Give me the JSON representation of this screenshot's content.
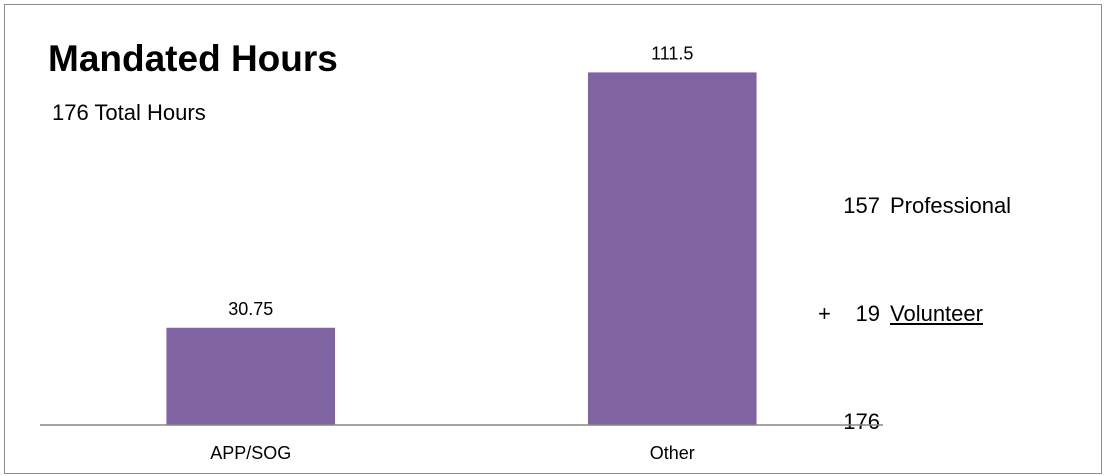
{
  "chart_data": {
    "type": "bar",
    "title": "Mandated Hours",
    "subtitle": "176 Total Hours",
    "categories": [
      "APP/SOG",
      "Other"
    ],
    "values": [
      30.75,
      111.5
    ],
    "value_labels": [
      "30.75",
      "111.5"
    ],
    "ylim": [
      0,
      117
    ],
    "xlabel": "",
    "ylabel": "",
    "grid": false,
    "bar_color": "#8064a2",
    "axis_color": "#868686",
    "annotation": {
      "rows": [
        {
          "op": "",
          "num": "157",
          "label": "Professional"
        },
        {
          "op": "+",
          "num": "19",
          "label": "Volunteer"
        },
        {
          "op": "",
          "num": "176",
          "label": ""
        }
      ]
    }
  }
}
